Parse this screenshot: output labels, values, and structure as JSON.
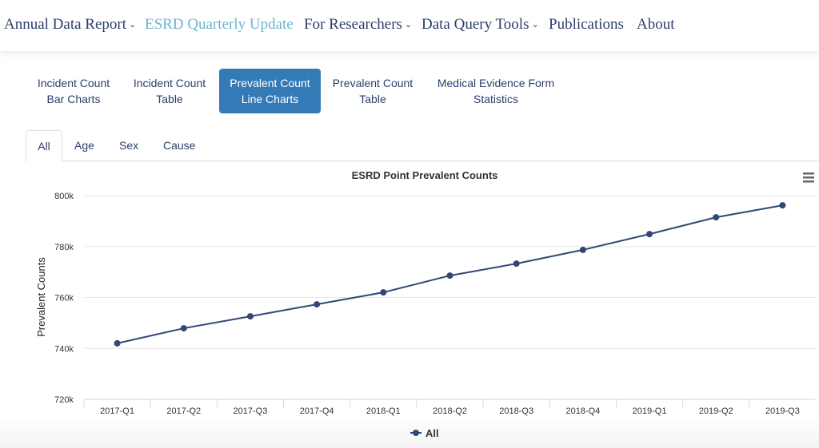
{
  "topnav": {
    "items": [
      {
        "label": "Annual Data Report",
        "dropdown": true
      },
      {
        "label": "ESRD Quarterly Update",
        "active": true
      },
      {
        "label": "For Researchers",
        "dropdown": true
      },
      {
        "label": "Data Query Tools",
        "dropdown": true
      },
      {
        "label": "Publications"
      },
      {
        "label": "About"
      }
    ]
  },
  "subnav": {
    "items": [
      {
        "line1": "Incident Count",
        "line2": "Bar Charts"
      },
      {
        "line1": "Incident Count",
        "line2": "Table"
      },
      {
        "line1": "Prevalent Count",
        "line2": "Line Charts",
        "active": true
      },
      {
        "line1": "Prevalent Count",
        "line2": "Table"
      },
      {
        "line1": "Medical Evidence Form",
        "line2": "Statistics"
      }
    ]
  },
  "tabs": [
    {
      "label": "All",
      "active": true
    },
    {
      "label": "Age"
    },
    {
      "label": "Sex"
    },
    {
      "label": "Cause"
    }
  ],
  "chart_data": {
    "type": "line",
    "title": "ESRD Point Prevalent Counts",
    "xlabel": "",
    "ylabel": "Prevalent Counts",
    "ylim": [
      720000,
      800000
    ],
    "yticks": [
      720000,
      740000,
      760000,
      780000,
      800000
    ],
    "ytick_labels": [
      "720k",
      "740k",
      "760k",
      "780k",
      "800k"
    ],
    "categories": [
      "2017-Q1",
      "2017-Q2",
      "2017-Q3",
      "2017-Q4",
      "2018-Q1",
      "2018-Q2",
      "2018-Q3",
      "2018-Q4",
      "2019-Q1",
      "2019-Q2",
      "2019-Q3"
    ],
    "series": [
      {
        "name": "All",
        "color": "#2f4875",
        "values": [
          742000,
          747900,
          752600,
          757300,
          762000,
          768600,
          773300,
          778700,
          784900,
          791500,
          796200
        ]
      }
    ],
    "grid": true,
    "legend": "bottom-center",
    "menu_icon": "hamburger-icon"
  }
}
